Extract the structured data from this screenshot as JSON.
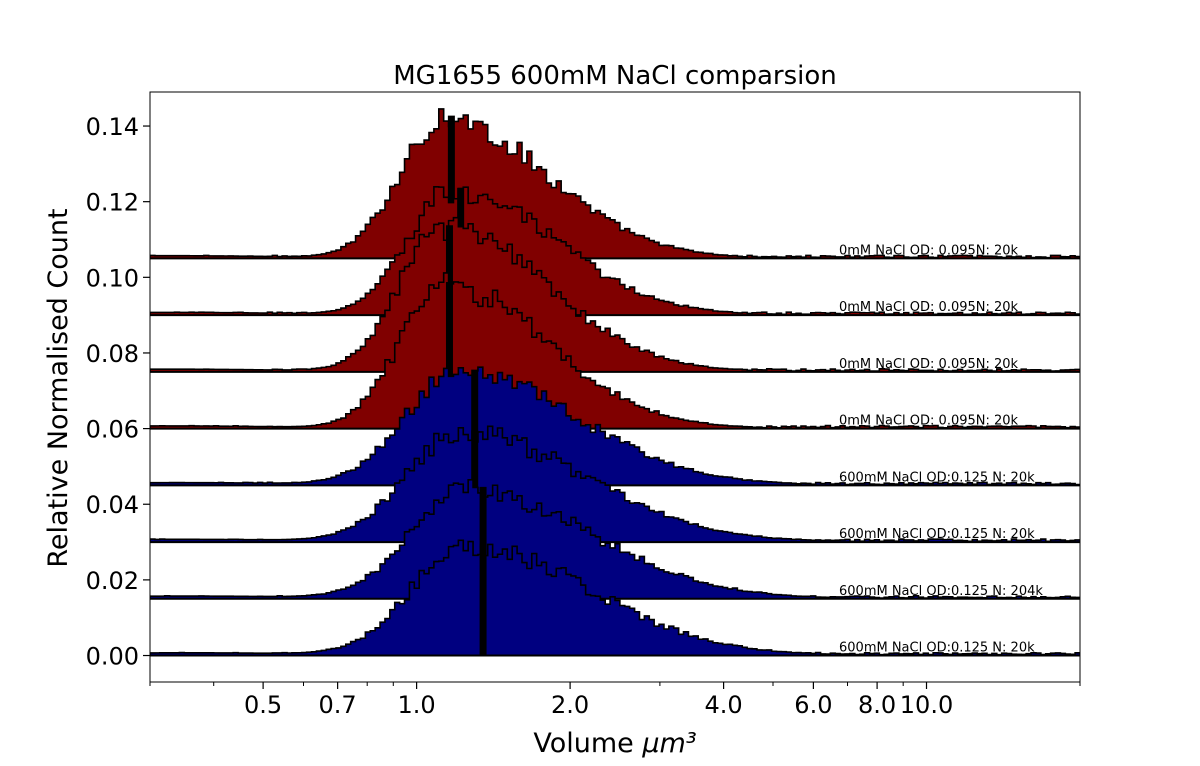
{
  "chart_data": {
    "type": "area",
    "title": "MG1655 600mM NaCl comparsion",
    "xlabel": "Volume",
    "xlabel_unit": "μm³",
    "ylabel": "Relative Normalised Count",
    "x_scale": "log",
    "xlim": [
      0.3,
      20.0
    ],
    "ylim": [
      -0.007,
      0.149
    ],
    "x_ticks": [
      0.5,
      0.7,
      1.0,
      2.0,
      4.0,
      6.0,
      8.0,
      10.0
    ],
    "x_tick_labels": [
      "0.5",
      "0.7",
      "1.0",
      "2.0",
      "4.0",
      "6.0",
      "8.0",
      "10.0"
    ],
    "y_ticks": [
      0.0,
      0.02,
      0.04,
      0.06,
      0.08,
      0.1,
      0.12,
      0.14
    ],
    "y_tick_labels": [
      "0.00",
      "0.02",
      "0.04",
      "0.06",
      "0.08",
      "0.10",
      "0.12",
      "0.14"
    ],
    "grid": false,
    "legend": "none",
    "colors": {
      "red_series": "#800000",
      "blue_series": "#000080",
      "outline": "#000000"
    },
    "series": [
      {
        "name": "0mM NaCl OD: 0.095N: 20k",
        "color": "#800000",
        "offset": 0.105,
        "peak_x": 1.13,
        "peak_height": 0.037,
        "sigma": 0.21,
        "skew": 0.28,
        "median_x": 1.17
      },
      {
        "name": "0mM NaCl OD: 0.095N: 20k",
        "color": "#800000",
        "offset": 0.09,
        "peak_x": 1.17,
        "peak_height": 0.033,
        "sigma": 0.21,
        "skew": 0.28,
        "median_x": 1.22
      },
      {
        "name": "0mM NaCl OD: 0.095N: 20k",
        "color": "#800000",
        "offset": 0.075,
        "peak_x": 1.13,
        "peak_height": 0.038,
        "sigma": 0.21,
        "skew": 0.28,
        "median_x": 1.16
      },
      {
        "name": "0mM NaCl OD: 0.095N: 20k",
        "color": "#800000",
        "offset": 0.06,
        "peak_x": 1.13,
        "peak_height": 0.038,
        "sigma": 0.21,
        "skew": 0.28,
        "median_x": 1.16
      },
      {
        "name": "600mM NaCl OD:0.125 N: 20k",
        "color": "#000080",
        "offset": 0.045,
        "peak_x": 1.2,
        "peak_height": 0.03,
        "sigma": 0.25,
        "skew": 0.25,
        "median_x": 1.3
      },
      {
        "name": "600mM NaCl OD:0.125 N: 20k",
        "color": "#000080",
        "offset": 0.03,
        "peak_x": 1.22,
        "peak_height": 0.029,
        "sigma": 0.26,
        "skew": 0.25,
        "median_x": 1.3
      },
      {
        "name": "600mM NaCl OD:0.125 N: 204k",
        "color": "#000080",
        "offset": 0.015,
        "peak_x": 1.25,
        "peak_height": 0.029,
        "sigma": 0.26,
        "skew": 0.25,
        "median_x": 1.35
      },
      {
        "name": "600mM NaCl OD:0.125 N: 20k",
        "color": "#000080",
        "offset": 0.0,
        "peak_x": 1.25,
        "peak_height": 0.029,
        "sigma": 0.26,
        "skew": 0.25,
        "median_x": 1.35
      }
    ]
  }
}
